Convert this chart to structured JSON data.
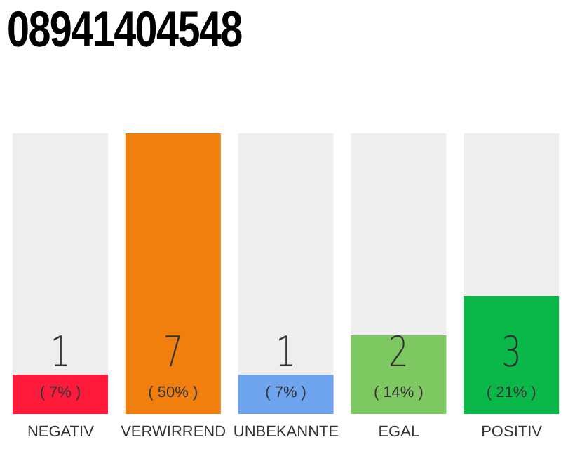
{
  "chart_data": {
    "type": "bar",
    "title": "08941404548",
    "categories": [
      "NEGATIV",
      "VERWIRREND",
      "UNBEKANNTE",
      "EGAL",
      "POSITIV"
    ],
    "values": [
      7,
      50,
      7,
      14,
      21
    ],
    "colors": [
      "#fe1a3b",
      "#f07f0e",
      "#6ea3ee",
      "#7dc860",
      "#0ab84a"
    ],
    "value_labels": [
      "( 7% )",
      "( 50% )",
      "( 7% )",
      "( 14% )",
      "( 21% )"
    ],
    "annotations": [
      "1",
      "7",
      "1",
      "2",
      "3"
    ],
    "tick_labels": "x"
  }
}
